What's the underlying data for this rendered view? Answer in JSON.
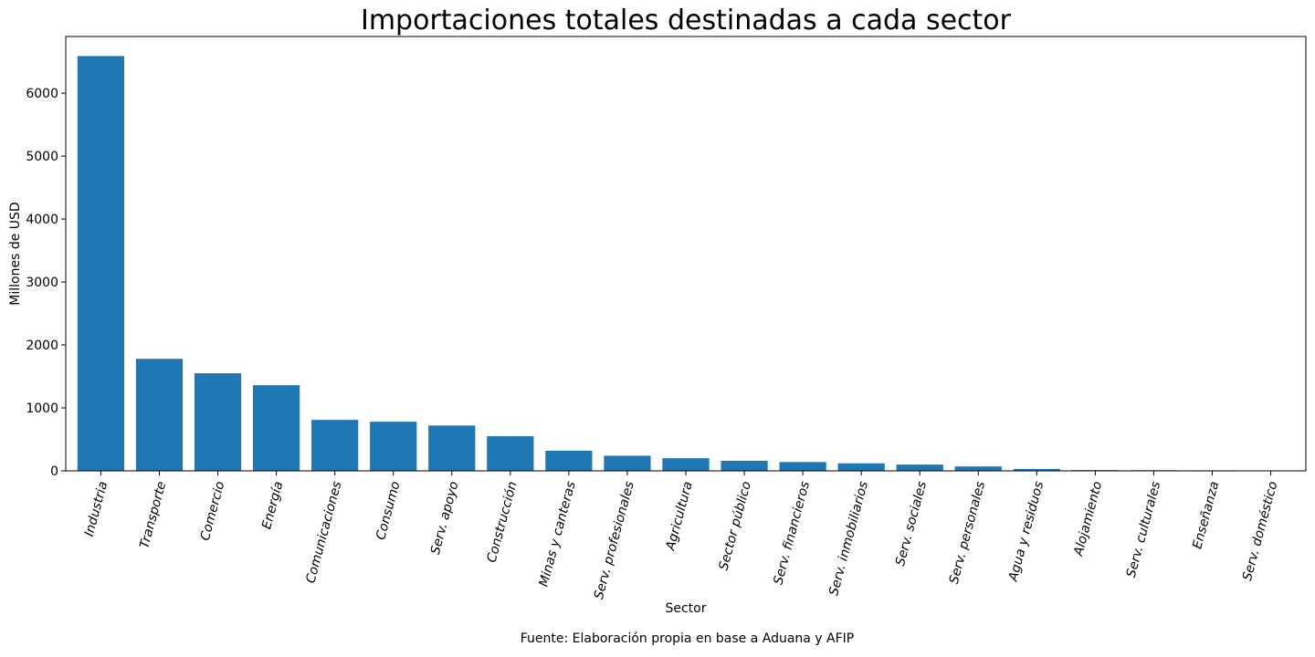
{
  "chart_data": {
    "type": "bar",
    "title": "Importaciones totales destinadas a cada sector",
    "xlabel": "Sector",
    "ylabel": "Millones de USD",
    "caption": "Fuente: Elaboración propia en base a Aduana y AFIP",
    "categories": [
      "Industria",
      "Transporte",
      "Comercio",
      "Energía",
      "Comunicaciones",
      "Consumo",
      "Serv. apoyo",
      "Construcción",
      "Minas y canteras",
      "Serv. profesionales",
      "Agricultura",
      "Sector público",
      "Serv. financieros",
      "Serv. inmobiliarios",
      "Serv. sociales",
      "Serv. personales",
      "Agua y residuos",
      "Alojamiento",
      "Serv. culturales",
      "Enseñanza",
      "Serv. doméstico"
    ],
    "values": [
      6590,
      1780,
      1550,
      1360,
      810,
      780,
      720,
      550,
      320,
      240,
      200,
      160,
      140,
      120,
      100,
      70,
      30,
      12,
      10,
      8,
      2
    ],
    "ylim": [
      0,
      6900
    ],
    "yticks": [
      0,
      1000,
      2000,
      3000,
      4000,
      5000,
      6000
    ],
    "grid": false,
    "bar_color": "#1f77b4"
  }
}
